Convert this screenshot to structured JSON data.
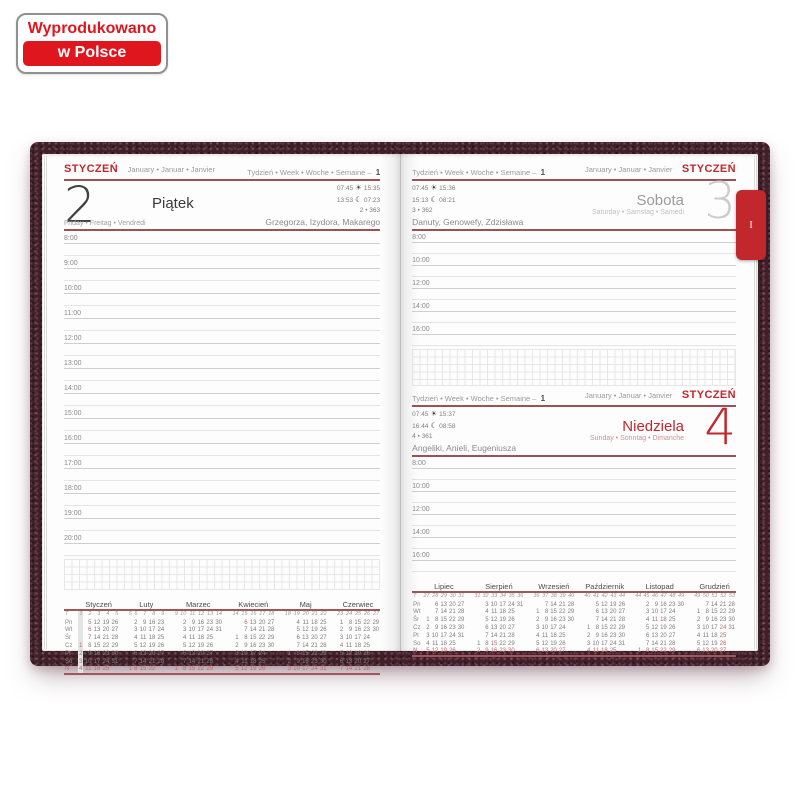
{
  "badge": {
    "line1": "Wyprodukowano",
    "line2": "w Polsce"
  },
  "tab": {
    "label": "I"
  },
  "icons": {
    "sun": "☀",
    "moon": "☾"
  },
  "colors": {
    "accent_red": "#c1272d",
    "rule_red": "#9e5058",
    "cover_maroon": "#3f2029",
    "badge_red": "#e0161f"
  },
  "week_header": {
    "label": "Tydzień • Week • Woche • Semaine –",
    "number": "1"
  },
  "month": {
    "pl": "STYCZEŃ",
    "intl": "January • Januar • Janvier"
  },
  "left_page": {
    "day": {
      "number": "2",
      "name_pl": "Piątek",
      "name_intl": "Friday • Freitag • Vendredi",
      "sunrise": "07:45",
      "sunset": "15:35",
      "moonrise": "13:53",
      "moonset": "07:23",
      "day_of_year": "2 • 363",
      "name_days": "Grzegorza, Izydora, Makarego"
    },
    "hours": [
      "8:00",
      "9:00",
      "10:00",
      "11:00",
      "12:00",
      "13:00",
      "14:00",
      "15:00",
      "16:00",
      "17:00",
      "18:00",
      "19:00",
      "20:00"
    ]
  },
  "right_page": {
    "sections": [
      {
        "day": {
          "number": "3",
          "name_pl": "Sobota",
          "name_intl": "Saturday • Samstag • Samedi",
          "sunrise": "07:45",
          "sunset": "15:36",
          "moonrise": "15:13",
          "moonset": "08:21",
          "day_of_year": "3 • 362",
          "name_days": "Danuty, Genowefy, Zdzisława"
        },
        "hours": [
          "8:00",
          "10:00",
          "12:00",
          "14:00",
          "16:00"
        ]
      },
      {
        "day": {
          "number": "4",
          "name_pl": "Niedziela",
          "name_intl": "Sunday • Sonntag • Dimanche",
          "sunrise": "07:45",
          "sunset": "15:37",
          "moonrise": "16:44",
          "moonset": "08:58",
          "day_of_year": "4 • 361",
          "name_days": "Angeliki, Anieli, Eugeniusza"
        },
        "hours": [
          "8:00",
          "10:00",
          "12:00",
          "14:00",
          "16:00"
        ]
      }
    ]
  },
  "calendar_left": {
    "weekday_col_header": "T",
    "day_labels": [
      "Pn",
      "Wt",
      "Śr",
      "Cz",
      "Pt",
      "So",
      "N"
    ],
    "months": [
      {
        "name": "Styczeń",
        "weeks": [
          "1",
          "2",
          "3",
          "4",
          "5"
        ],
        "highlight_col": 0,
        "rows": [
          {
            "cells": [
              "",
              "5",
              "12",
              "19",
              "26"
            ]
          },
          {
            "cells": [
              "",
              "6",
              "13",
              "20",
              "27"
            ],
            "redCells": [
              1
            ]
          },
          {
            "cells": [
              "",
              "7",
              "14",
              "21",
              "28"
            ]
          },
          {
            "cells": [
              "1",
              "8",
              "15",
              "22",
              "29"
            ],
            "redCells": [
              0
            ]
          },
          {
            "cells": [
              "2",
              "9",
              "16",
              "23",
              "30"
            ]
          },
          {
            "cells": [
              "3",
              "10",
              "17",
              "24",
              "31"
            ]
          },
          {
            "cells": [
              "4",
              "11",
              "18",
              "25",
              ""
            ],
            "red": true
          }
        ]
      },
      {
        "name": "Luty",
        "weeks": [
          "5",
          "6",
          "7",
          "8",
          "9"
        ],
        "rows": [
          {
            "cells": [
              "",
              "2",
              "9",
              "16",
              "23"
            ]
          },
          {
            "cells": [
              "",
              "3",
              "10",
              "17",
              "24"
            ]
          },
          {
            "cells": [
              "",
              "4",
              "11",
              "18",
              "25"
            ]
          },
          {
            "cells": [
              "",
              "5",
              "12",
              "19",
              "26"
            ]
          },
          {
            "cells": [
              "",
              "6",
              "13",
              "20",
              "27"
            ]
          },
          {
            "cells": [
              "",
              "7",
              "14",
              "21",
              "28"
            ]
          },
          {
            "cells": [
              "1",
              "8",
              "15",
              "22",
              ""
            ],
            "red": true
          }
        ]
      },
      {
        "name": "Marzec",
        "weeks": [
          "9",
          "10",
          "11",
          "12",
          "13",
          "14"
        ],
        "rows": [
          {
            "cells": [
              "",
              "2",
              "9",
              "16",
              "23",
              "30"
            ]
          },
          {
            "cells": [
              "",
              "3",
              "10",
              "17",
              "24",
              "31"
            ]
          },
          {
            "cells": [
              "",
              "4",
              "11",
              "18",
              "25",
              ""
            ]
          },
          {
            "cells": [
              "",
              "5",
              "12",
              "19",
              "26",
              ""
            ]
          },
          {
            "cells": [
              "",
              "6",
              "13",
              "20",
              "27",
              ""
            ]
          },
          {
            "cells": [
              "",
              "7",
              "14",
              "21",
              "28",
              ""
            ]
          },
          {
            "cells": [
              "1",
              "8",
              "15",
              "22",
              "29",
              ""
            ],
            "red": true
          }
        ]
      },
      {
        "name": "Kwiecień",
        "weeks": [
          "14",
          "15",
          "16",
          "17",
          "18"
        ],
        "rows": [
          {
            "cells": [
              "",
              "6",
              "13",
              "20",
              "27"
            ],
            "redCells": [
              1
            ]
          },
          {
            "cells": [
              "",
              "7",
              "14",
              "21",
              "28"
            ]
          },
          {
            "cells": [
              "1",
              "8",
              "15",
              "22",
              "29"
            ]
          },
          {
            "cells": [
              "2",
              "9",
              "16",
              "23",
              "30"
            ]
          },
          {
            "cells": [
              "3",
              "10",
              "17",
              "24",
              ""
            ]
          },
          {
            "cells": [
              "4",
              "11",
              "18",
              "25",
              ""
            ]
          },
          {
            "cells": [
              "5",
              "12",
              "19",
              "26",
              ""
            ],
            "red": true
          }
        ]
      },
      {
        "name": "Maj",
        "weeks": [
          "18",
          "19",
          "20",
          "21",
          "22"
        ],
        "rows": [
          {
            "cells": [
              "",
              "4",
              "11",
              "18",
              "25"
            ]
          },
          {
            "cells": [
              "",
              "5",
              "12",
              "19",
              "26"
            ]
          },
          {
            "cells": [
              "",
              "6",
              "13",
              "20",
              "27"
            ]
          },
          {
            "cells": [
              "",
              "7",
              "14",
              "21",
              "28"
            ]
          },
          {
            "cells": [
              "1",
              "8",
              "15",
              "22",
              "29"
            ],
            "redCells": [
              0
            ]
          },
          {
            "cells": [
              "2",
              "9",
              "16",
              "23",
              "30"
            ]
          },
          {
            "cells": [
              "3",
              "10",
              "17",
              "24",
              "31"
            ],
            "red": true
          }
        ]
      },
      {
        "name": "Czerwiec",
        "weeks": [
          "23",
          "24",
          "25",
          "26",
          "27"
        ],
        "rows": [
          {
            "cells": [
              "1",
              "8",
              "15",
              "22",
              "29"
            ]
          },
          {
            "cells": [
              "2",
              "9",
              "16",
              "23",
              "30"
            ]
          },
          {
            "cells": [
              "3",
              "10",
              "17",
              "24",
              ""
            ]
          },
          {
            "cells": [
              "4",
              "11",
              "18",
              "25",
              ""
            ],
            "redCells": [
              0
            ]
          },
          {
            "cells": [
              "5",
              "12",
              "19",
              "26",
              ""
            ]
          },
          {
            "cells": [
              "6",
              "13",
              "20",
              "27",
              ""
            ]
          },
          {
            "cells": [
              "7",
              "14",
              "21",
              "28",
              ""
            ],
            "red": true
          }
        ]
      }
    ]
  },
  "calendar_right": {
    "weekday_col_header": "T",
    "day_labels": [
      "Pn",
      "Wt",
      "Śr",
      "Cz",
      "Pt",
      "So",
      "N"
    ],
    "months": [
      {
        "name": "Lipiec",
        "weeks": [
          "27",
          "28",
          "29",
          "30",
          "31"
        ],
        "rows": [
          {
            "cells": [
              "",
              "6",
              "13",
              "20",
              "27"
            ]
          },
          {
            "cells": [
              "",
              "7",
              "14",
              "21",
              "28"
            ]
          },
          {
            "cells": [
              "1",
              "8",
              "15",
              "22",
              "29"
            ]
          },
          {
            "cells": [
              "2",
              "9",
              "16",
              "23",
              "30"
            ]
          },
          {
            "cells": [
              "3",
              "10",
              "17",
              "24",
              "31"
            ]
          },
          {
            "cells": [
              "4",
              "11",
              "18",
              "25",
              ""
            ]
          },
          {
            "cells": [
              "5",
              "12",
              "19",
              "26",
              ""
            ],
            "red": true
          }
        ]
      },
      {
        "name": "Sierpień",
        "weeks": [
          "31",
          "32",
          "33",
          "34",
          "35",
          "36"
        ],
        "rows": [
          {
            "cells": [
              "",
              "3",
              "10",
              "17",
              "24",
              "31"
            ]
          },
          {
            "cells": [
              "",
              "4",
              "11",
              "18",
              "25",
              ""
            ]
          },
          {
            "cells": [
              "",
              "5",
              "12",
              "19",
              "26",
              ""
            ]
          },
          {
            "cells": [
              "",
              "6",
              "13",
              "20",
              "27",
              ""
            ]
          },
          {
            "cells": [
              "",
              "7",
              "14",
              "21",
              "28",
              ""
            ]
          },
          {
            "cells": [
              "1",
              "8",
              "15",
              "22",
              "29",
              ""
            ],
            "redCells": [
              2
            ]
          },
          {
            "cells": [
              "2",
              "9",
              "16",
              "23",
              "30",
              ""
            ],
            "red": true
          }
        ]
      },
      {
        "name": "Wrzesień",
        "weeks": [
          "36",
          "37",
          "38",
          "39",
          "40"
        ],
        "rows": [
          {
            "cells": [
              "",
              "7",
              "14",
              "21",
              "28"
            ]
          },
          {
            "cells": [
              "1",
              "8",
              "15",
              "22",
              "29"
            ]
          },
          {
            "cells": [
              "2",
              "9",
              "16",
              "23",
              "30"
            ]
          },
          {
            "cells": [
              "3",
              "10",
              "17",
              "24",
              ""
            ]
          },
          {
            "cells": [
              "4",
              "11",
              "18",
              "25",
              ""
            ]
          },
          {
            "cells": [
              "5",
              "12",
              "19",
              "26",
              ""
            ]
          },
          {
            "cells": [
              "6",
              "13",
              "20",
              "27",
              ""
            ],
            "red": true
          }
        ]
      },
      {
        "name": "Październik",
        "weeks": [
          "40",
          "41",
          "42",
          "43",
          "44"
        ],
        "rows": [
          {
            "cells": [
              "",
              "5",
              "12",
              "19",
              "26"
            ]
          },
          {
            "cells": [
              "",
              "6",
              "13",
              "20",
              "27"
            ]
          },
          {
            "cells": [
              "",
              "7",
              "14",
              "21",
              "28"
            ]
          },
          {
            "cells": [
              "1",
              "8",
              "15",
              "22",
              "29"
            ]
          },
          {
            "cells": [
              "2",
              "9",
              "16",
              "23",
              "30"
            ]
          },
          {
            "cells": [
              "3",
              "10",
              "17",
              "24",
              "31"
            ]
          },
          {
            "cells": [
              "4",
              "11",
              "18",
              "25",
              ""
            ],
            "red": true
          }
        ]
      },
      {
        "name": "Listopad",
        "weeks": [
          "44",
          "45",
          "46",
          "47",
          "48",
          "49"
        ],
        "rows": [
          {
            "cells": [
              "",
              "2",
              "9",
              "16",
              "23",
              "30"
            ]
          },
          {
            "cells": [
              "",
              "3",
              "10",
              "17",
              "24",
              ""
            ]
          },
          {
            "cells": [
              "",
              "4",
              "11",
              "18",
              "25",
              ""
            ],
            "redCells": [
              2
            ]
          },
          {
            "cells": [
              "",
              "5",
              "12",
              "19",
              "26",
              ""
            ]
          },
          {
            "cells": [
              "",
              "6",
              "13",
              "20",
              "27",
              ""
            ]
          },
          {
            "cells": [
              "",
              "7",
              "14",
              "21",
              "28",
              ""
            ]
          },
          {
            "cells": [
              "1",
              "8",
              "15",
              "22",
              "29",
              ""
            ],
            "red": true
          }
        ]
      },
      {
        "name": "Grudzień",
        "weeks": [
          "49",
          "50",
          "51",
          "52",
          "53"
        ],
        "rows": [
          {
            "cells": [
              "",
              "7",
              "14",
              "21",
              "28"
            ]
          },
          {
            "cells": [
              "1",
              "8",
              "15",
              "22",
              "29"
            ]
          },
          {
            "cells": [
              "2",
              "9",
              "16",
              "23",
              "30"
            ]
          },
          {
            "cells": [
              "3",
              "10",
              "17",
              "24",
              "31"
            ],
            "redCells": [
              3
            ]
          },
          {
            "cells": [
              "4",
              "11",
              "18",
              "25",
              ""
            ],
            "redCells": [
              3
            ]
          },
          {
            "cells": [
              "5",
              "12",
              "19",
              "26",
              ""
            ],
            "redCells": [
              3
            ]
          },
          {
            "cells": [
              "6",
              "13",
              "20",
              "27",
              ""
            ],
            "red": true
          }
        ]
      }
    ]
  }
}
